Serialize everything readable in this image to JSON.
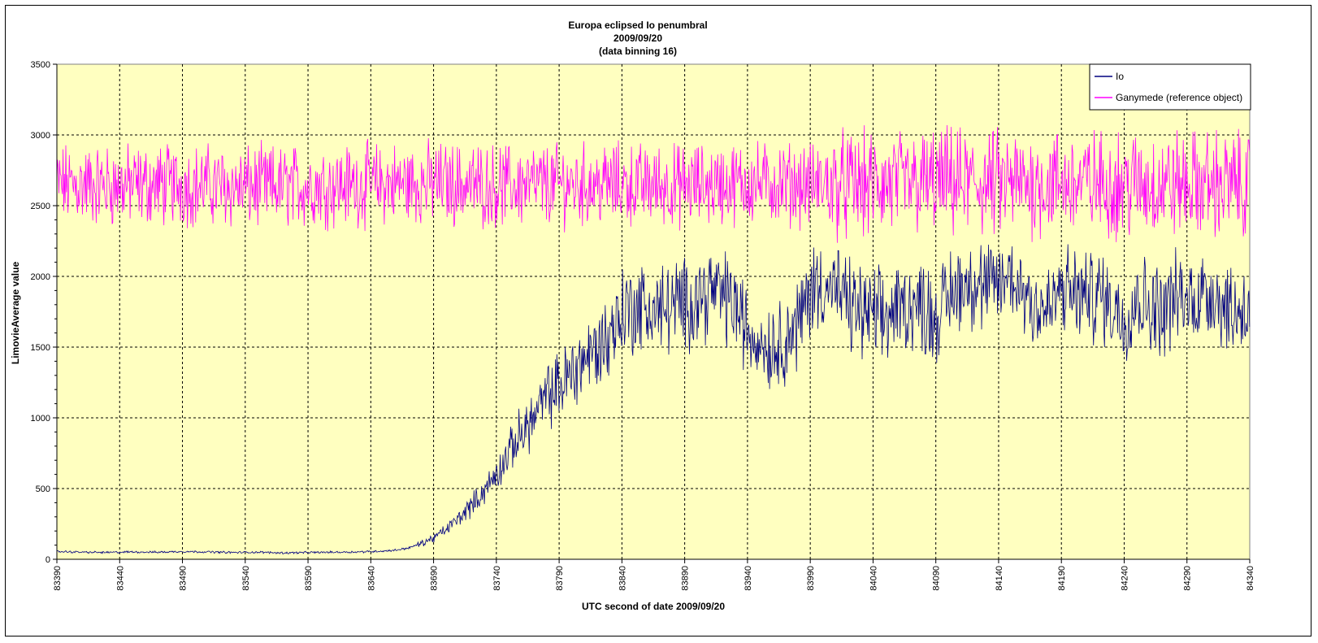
{
  "chart_data": {
    "type": "line",
    "title_lines": [
      "Europa eclipsed Io penumbral",
      "2009/09/20",
      "(data binning 16)"
    ],
    "xlabel": "UTC second  of date 2009/09/20",
    "ylabel": "LimovieAverage value",
    "xlim": [
      83390,
      84340
    ],
    "ylim": [
      0,
      3500
    ],
    "x_ticks": [
      "83390",
      "83440",
      "83490",
      "83540",
      "83590",
      "83640",
      "83690",
      "83740",
      "83790",
      "83840",
      "83890",
      "83940",
      "83990",
      "84040",
      "84090",
      "84140",
      "84190",
      "84240",
      "84290",
      "84340"
    ],
    "y_ticks": [
      "0",
      "500",
      "1000",
      "1500",
      "2000",
      "2500",
      "3000",
      "3500"
    ],
    "grid": true,
    "legend_position": "top-right",
    "plot_background": "#ffffc0",
    "series": [
      {
        "name": "Io",
        "color": "#000080",
        "x": [
          83390,
          83410,
          83430,
          83450,
          83470,
          83490,
          83510,
          83530,
          83550,
          83570,
          83590,
          83610,
          83630,
          83650,
          83660,
          83670,
          83680,
          83690,
          83700,
          83710,
          83720,
          83730,
          83740,
          83750,
          83760,
          83770,
          83780,
          83790,
          83800,
          83810,
          83820,
          83830,
          83840,
          83850,
          83860,
          83870,
          83880,
          83890,
          83900,
          83910,
          83920,
          83930,
          83940,
          83950,
          83960,
          83970,
          83980,
          83990,
          84000,
          84010,
          84020,
          84030,
          84040,
          84050,
          84060,
          84070,
          84080,
          84090,
          84100,
          84110,
          84120,
          84130,
          84140,
          84150,
          84160,
          84170,
          84180,
          84190,
          84200,
          84210,
          84220,
          84230,
          84240,
          84250,
          84260,
          84270,
          84280,
          84290,
          84300,
          84310,
          84320,
          84330,
          84340
        ],
        "values": [
          55,
          50,
          48,
          52,
          50,
          55,
          52,
          48,
          50,
          45,
          48,
          50,
          52,
          58,
          65,
          80,
          110,
          150,
          210,
          290,
          380,
          480,
          600,
          750,
          900,
          1000,
          1150,
          1220,
          1320,
          1420,
          1480,
          1580,
          1750,
          1780,
          1770,
          1760,
          1790,
          1800,
          1850,
          1900,
          1870,
          1800,
          1600,
          1550,
          1500,
          1560,
          1650,
          1900,
          1950,
          1900,
          1800,
          1750,
          1720,
          1700,
          1780,
          1800,
          1790,
          1700,
          1850,
          1950,
          1960,
          1900,
          1950,
          2000,
          1900,
          1800,
          1750,
          1900,
          1880,
          1850,
          1870,
          1800,
          1700,
          1850,
          1800,
          1750,
          1850,
          1820,
          1870,
          1900,
          1800,
          1750,
          1800
        ]
      },
      {
        "name": "Ganymede (reference object)",
        "color": "#ff00ff",
        "x": [
          83390,
          83440,
          83490,
          83540,
          83590,
          83640,
          83690,
          83740,
          83790,
          83840,
          83890,
          83940,
          83990,
          84040,
          84090,
          84140,
          84190,
          84240,
          84290,
          84340
        ],
        "values": [
          2650,
          2640,
          2650,
          2630,
          2640,
          2650,
          2660,
          2640,
          2650,
          2650,
          2640,
          2660,
          2650,
          2640,
          2660,
          2650,
          2660,
          2650,
          2650,
          2650
        ]
      }
    ]
  }
}
